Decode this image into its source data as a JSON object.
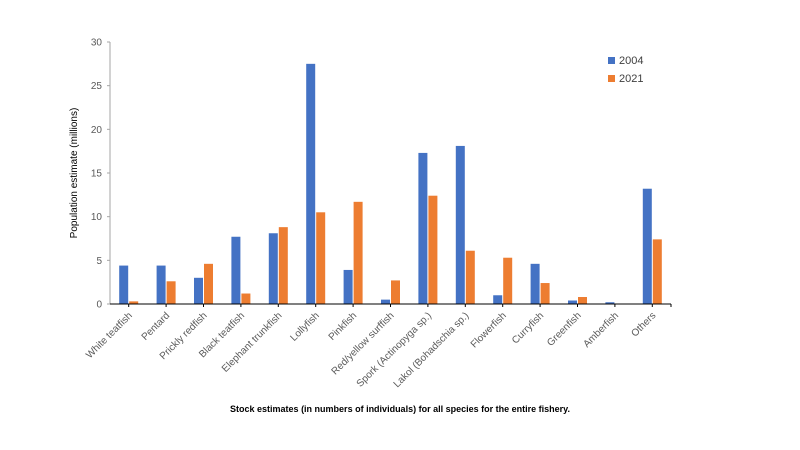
{
  "chart_data": {
    "type": "bar",
    "title": "",
    "xlabel": "",
    "ylabel": "Population estimate (millions)",
    "ylim": [
      0,
      30
    ],
    "yticks": [
      0,
      5,
      10,
      15,
      20,
      25,
      30
    ],
    "grid": false,
    "legend_position": "top-right",
    "categories": [
      "White teatfish",
      "Pentard",
      "Prickly redfish",
      "Black teatfish",
      "Elephant trunkfish",
      "Lollyfish",
      "Pinkfish",
      "Red/yellow surffish",
      "Spork (Actinopyga sp.)",
      "Lakol (Bohadschia sp.)",
      "Flowerfish",
      "Curryfish",
      "Greenfish",
      "Amberfish",
      "Others"
    ],
    "series": [
      {
        "name": "2004",
        "color": "#4472C4",
        "values": [
          4.4,
          4.4,
          3.0,
          7.7,
          8.1,
          27.5,
          3.9,
          0.5,
          17.3,
          18.1,
          1.0,
          4.6,
          0.4,
          0.2,
          13.2
        ]
      },
      {
        "name": "2021",
        "color": "#ED7D31",
        "values": [
          0.3,
          2.6,
          4.6,
          1.2,
          8.8,
          10.5,
          11.7,
          2.7,
          12.4,
          6.1,
          5.3,
          2.4,
          0.8,
          0,
          7.4
        ]
      }
    ]
  },
  "caption": "Stock estimates (in numbers of individuals) for all species for the entire fishery."
}
